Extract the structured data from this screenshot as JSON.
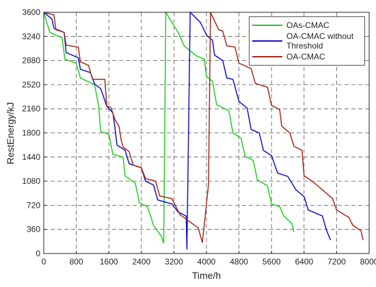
{
  "chart_data": {
    "type": "line",
    "xlabel": "Time/h",
    "ylabel": "RestEnergy/kJ",
    "xlim": [
      0,
      8000
    ],
    "xticks": [
      0,
      800,
      1600,
      2400,
      3200,
      4000,
      4800,
      5600,
      6400,
      7200,
      8000
    ],
    "ylim": [
      0,
      3600
    ],
    "yticks": [
      0,
      360,
      720,
      1080,
      1440,
      1800,
      2160,
      2520,
      2880,
      3240,
      3600
    ],
    "grid": true,
    "legend": "upper right",
    "series": [
      {
        "name": "OAs-CMAC",
        "color": "#22cc22",
        "x": [
          0,
          150,
          450,
          520,
          800,
          900,
          1250,
          1350,
          1400,
          1600,
          1700,
          1950,
          2000,
          2250,
          2350,
          2550,
          2700,
          2900,
          2950,
          3000,
          3300,
          3450,
          3750,
          3950,
          4000,
          4150,
          4250,
          4550,
          4650,
          4850,
          4950,
          5150,
          5250,
          5500,
          5600,
          5800,
          5900,
          6100,
          6150
        ],
        "values": [
          3600,
          3300,
          3220,
          2900,
          2840,
          2620,
          2520,
          2200,
          1820,
          1780,
          1480,
          1440,
          1160,
          1050,
          760,
          700,
          420,
          250,
          150,
          3600,
          3300,
          3100,
          2950,
          2900,
          2640,
          2570,
          2220,
          2130,
          1800,
          1720,
          1450,
          1390,
          1100,
          1010,
          740,
          700,
          560,
          450,
          320
        ]
      },
      {
        "name": "OA-CMAC without Threshold",
        "color": "#1010cc",
        "x": [
          0,
          200,
          250,
          500,
          550,
          850,
          900,
          1150,
          1250,
          1400,
          1550,
          1700,
          1750,
          1800,
          2000,
          2100,
          2400,
          2500,
          2700,
          2800,
          3150,
          3300,
          3500,
          3520,
          3600,
          3850,
          4000,
          4150,
          4200,
          4400,
          4500,
          4650,
          4800,
          5000,
          5100,
          5300,
          5400,
          5600,
          5750,
          6000,
          6200,
          6400,
          6500,
          6850,
          6950,
          7050
        ],
        "values": [
          3600,
          3500,
          3360,
          3300,
          3000,
          2920,
          2750,
          2700,
          2530,
          2460,
          2200,
          2100,
          1880,
          1620,
          1540,
          1340,
          1280,
          1080,
          1020,
          800,
          740,
          620,
          560,
          60,
          3600,
          3450,
          3260,
          3180,
          2960,
          2880,
          2620,
          2600,
          2270,
          2170,
          1850,
          1800,
          1540,
          1460,
          1200,
          1150,
          950,
          850,
          650,
          560,
          350,
          200
        ]
      },
      {
        "name": "OA-CMAC",
        "color": "#a52a1a",
        "x": [
          0,
          250,
          300,
          500,
          550,
          850,
          900,
          1100,
          1200,
          1500,
          1550,
          1650,
          1750,
          1850,
          1900,
          1950,
          2100,
          2200,
          2400,
          2500,
          2750,
          2850,
          3150,
          3350,
          3800,
          3900,
          4050,
          4100,
          4300,
          4400,
          4500,
          4700,
          4800,
          5100,
          5200,
          5500,
          5600,
          5800,
          5850,
          6050,
          6150,
          6350,
          6400,
          6600,
          7100,
          7200,
          7500,
          7600,
          7800,
          7850
        ],
        "values": [
          3600,
          3560,
          3340,
          3300,
          3110,
          3080,
          2860,
          2810,
          2600,
          2600,
          2200,
          2180,
          2000,
          1900,
          1700,
          1590,
          1520,
          1320,
          1280,
          1120,
          1080,
          860,
          820,
          580,
          380,
          160,
          1030,
          3600,
          3340,
          3320,
          3100,
          3080,
          2840,
          2760,
          2540,
          2480,
          2210,
          2150,
          1900,
          1800,
          1600,
          1540,
          1160,
          1080,
          820,
          650,
          540,
          420,
          340,
          200
        ]
      }
    ]
  }
}
